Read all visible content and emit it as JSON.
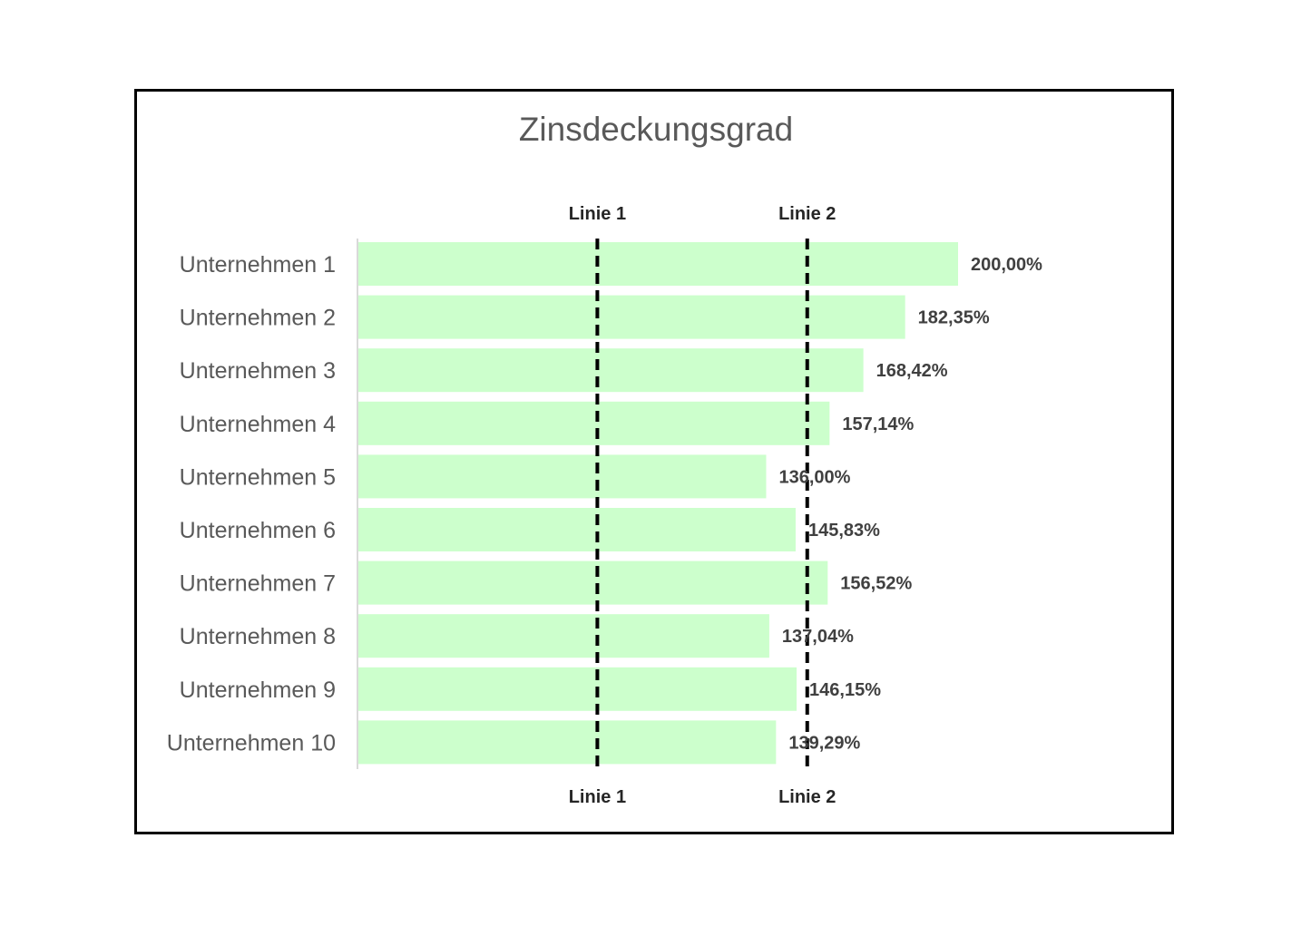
{
  "chart_data": {
    "type": "bar",
    "orientation": "horizontal",
    "title": "Zinsdeckungsgrad",
    "xlabel": "",
    "ylabel": "",
    "xlim": [
      0,
      240
    ],
    "grid": false,
    "legend": "none",
    "categories": [
      "Unternehmen 1",
      "Unternehmen 2",
      "Unternehmen 3",
      "Unternehmen 4",
      "Unternehmen 5",
      "Unternehmen 6",
      "Unternehmen 7",
      "Unternehmen 8",
      "Unternehmen 9",
      "Unternehmen 10"
    ],
    "values": [
      200.0,
      182.35,
      168.42,
      157.14,
      136.0,
      145.83,
      156.52,
      137.04,
      146.15,
      139.29
    ],
    "value_labels": [
      "200,00%",
      "182,35%",
      "168,42%",
      "157,14%",
      "136,00%",
      "145,83%",
      "156,52%",
      "137,04%",
      "146,15%",
      "139,29%"
    ],
    "reference_lines": [
      {
        "label": "Linie 1",
        "value": 80
      },
      {
        "label": "Linie 2",
        "value": 150
      }
    ],
    "colors": {
      "bar": "#ccffcc",
      "reference_line": "#000000",
      "axis": "#d9d9d9"
    }
  }
}
